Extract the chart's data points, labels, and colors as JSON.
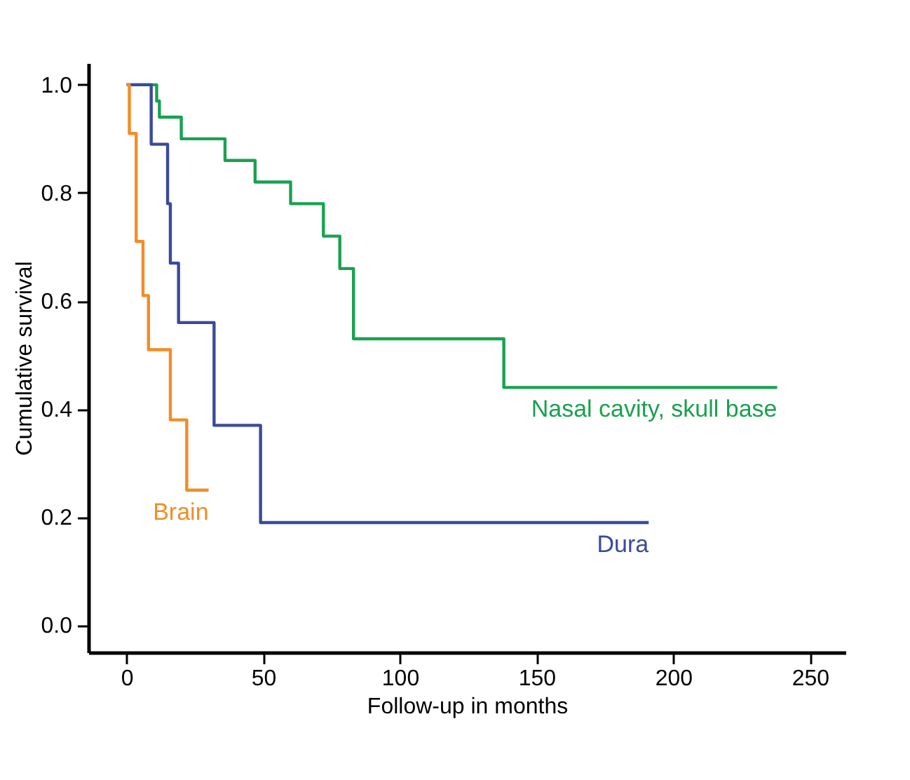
{
  "chart_data": {
    "type": "step",
    "xlabel": "Follow-up in months",
    "ylabel": "Cumulative survival",
    "xlim": [
      -14,
      263
    ],
    "ylim": [
      -0.05,
      1.04
    ],
    "xticks": [
      0,
      50,
      100,
      150,
      200,
      250
    ],
    "yticks": [
      {
        "value": 0,
        "label": "0.0"
      },
      {
        "value": 0.2,
        "label": "0.2"
      },
      {
        "value": 0.4,
        "label": "0.4"
      },
      {
        "value": 0.6,
        "label": "0.6"
      },
      {
        "value": 0.8,
        "label": "0.8"
      },
      {
        "value": 1,
        "label": "1.0"
      }
    ],
    "grid": false,
    "line_style": "solid",
    "marker": "none",
    "series": [
      {
        "name": "Nasal cavity, skull base",
        "color": "#1aa150",
        "x": [
          0,
          11,
          12,
          20,
          36,
          47,
          60,
          72,
          78,
          83,
          138,
          238
        ],
        "values": [
          1.0,
          0.97,
          0.94,
          0.9,
          0.86,
          0.82,
          0.78,
          0.72,
          0.66,
          0.53,
          0.44,
          0.44
        ]
      },
      {
        "name": "Dura",
        "color": "#3b4a9c",
        "x": [
          0,
          9,
          15,
          16,
          19,
          32,
          49,
          191
        ],
        "values": [
          1.0,
          0.89,
          0.78,
          0.67,
          0.56,
          0.37,
          0.19,
          0.19
        ]
      },
      {
        "name": "Brain",
        "color": "#f28c28",
        "x": [
          0,
          1,
          3.5,
          6,
          8,
          16,
          22,
          30
        ],
        "values": [
          1.0,
          0.91,
          0.71,
          0.61,
          0.51,
          0.38,
          0.25,
          0.25
        ]
      }
    ]
  }
}
